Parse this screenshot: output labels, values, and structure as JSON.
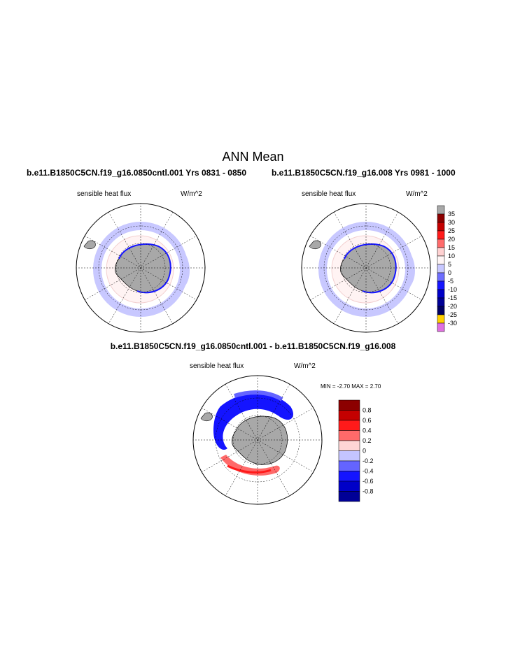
{
  "title": "ANN Mean",
  "panels": [
    {
      "case_title": "b.e11.B1850C5CN.f19_g16.0850cntl.001  Yrs 0831 - 0850",
      "variable": "sensible heat flux",
      "units": "W/m^2"
    },
    {
      "case_title": "b.e11.B1850C5CN.f19_g16.008  Yrs 0981 - 1000",
      "variable": "sensible heat flux",
      "units": "W/m^2"
    }
  ],
  "difference": {
    "title": "b.e11.B1850C5CN.f19_g16.0850cntl.001 - b.e11.B1850C5CN.f19_g16.008",
    "variable": "sensible heat flux",
    "units": "W/m^2",
    "minmax": "MIN =  -2.70 MAX =   2.70"
  },
  "colorbar_main": {
    "labels": [
      "35",
      "30",
      "25",
      "20",
      "15",
      "10",
      "5",
      "0",
      "-5",
      "-10",
      "-15",
      "-20",
      "-25",
      "-30"
    ],
    "colors": [
      "#a8a8a8",
      "#8c0000",
      "#c40000",
      "#ff1a1a",
      "#ff6a6a",
      "#ffd1d1",
      "#fff5f5",
      "#c8c8ff",
      "#6e6eff",
      "#1515ff",
      "#0000c8",
      "#000096",
      "#000064",
      "#ffd000",
      "#e070e0"
    ]
  },
  "colorbar_diff": {
    "labels": [
      "0.8",
      "0.6",
      "0.4",
      "0.2",
      "0",
      "-0.2",
      "-0.4",
      "-0.6",
      "-0.8"
    ],
    "colors": [
      "#8c0000",
      "#c40000",
      "#ff1a1a",
      "#ff6a6a",
      "#ffd5d5",
      "#c4c4ff",
      "#6464ff",
      "#1414ff",
      "#0000c8",
      "#000096"
    ]
  }
}
